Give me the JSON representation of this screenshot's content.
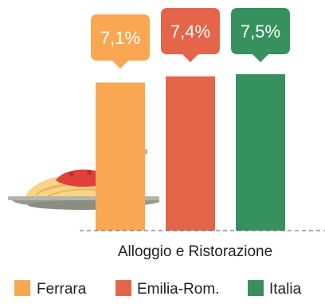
{
  "chart_data": {
    "type": "bar",
    "categories": [
      "Alloggio e Ristorazione"
    ],
    "series": [
      {
        "name": "Ferrara",
        "values": [
          7.1
        ],
        "label": "7,1%",
        "color": "#F9A752"
      },
      {
        "name": "Emilia-Rom.",
        "values": [
          7.4
        ],
        "label": "7,4%",
        "color": "#E5654A"
      },
      {
        "name": "Italia",
        "values": [
          7.5
        ],
        "label": "7,5%",
        "color": "#36915F"
      }
    ],
    "title": "",
    "xlabel": "Alloggio e Ristorazione",
    "ylabel": "",
    "ylim": [
      0,
      7.6
    ],
    "grid": false,
    "legend_position": "bottom",
    "decoration_icon": "spaghetti-plate-icon"
  }
}
